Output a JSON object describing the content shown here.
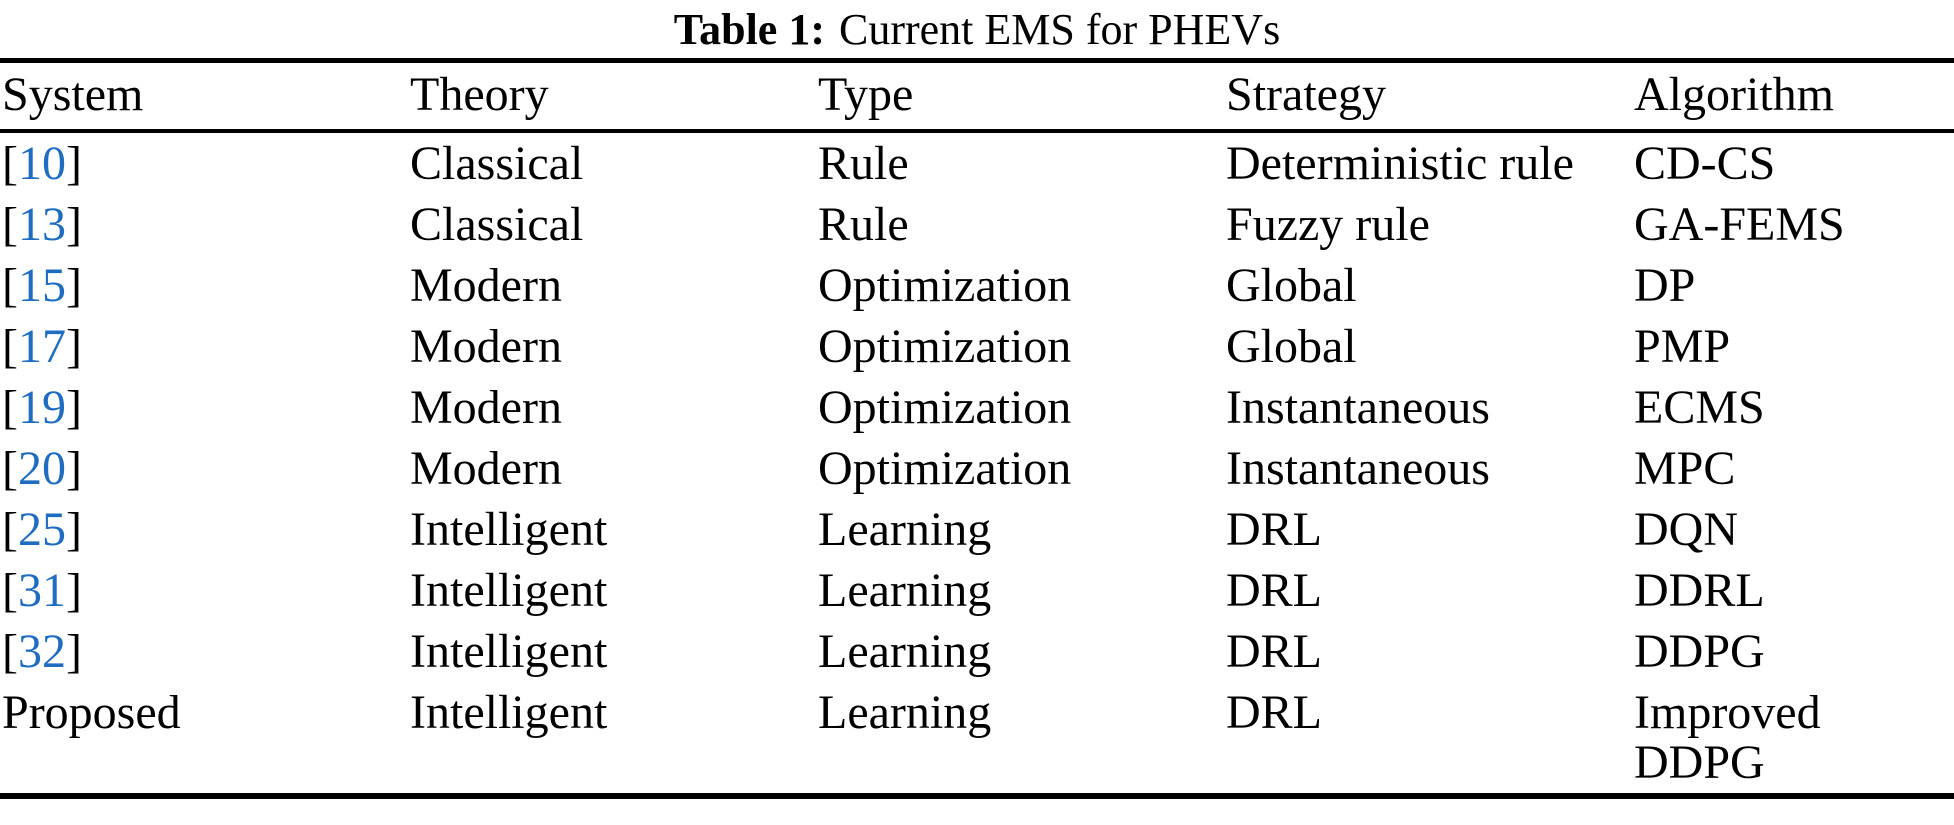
{
  "caption": {
    "label": "Table 1:",
    "text": "Current EMS for PHEVs"
  },
  "colors": {
    "citation_blue": "#1f6dc1",
    "text": "#000000",
    "rule": "#000000",
    "background": "#ffffff"
  },
  "table": {
    "citation_brackets": {
      "open": "[",
      "close": "]"
    },
    "columns": [
      "System",
      "Theory",
      "Type",
      "Strategy",
      "Algorithm"
    ],
    "rows": [
      {
        "system": "10",
        "system_is_citation": true,
        "theory": "Classical",
        "type": "Rule",
        "strategy": "Deterministic rule",
        "algorithm": "CD-CS"
      },
      {
        "system": "13",
        "system_is_citation": true,
        "theory": "Classical",
        "type": "Rule",
        "strategy": "Fuzzy rule",
        "algorithm": "GA-FEMS"
      },
      {
        "system": "15",
        "system_is_citation": true,
        "theory": "Modern",
        "type": "Optimization",
        "strategy": "Global",
        "algorithm": "DP"
      },
      {
        "system": "17",
        "system_is_citation": true,
        "theory": "Modern",
        "type": "Optimization",
        "strategy": "Global",
        "algorithm": "PMP"
      },
      {
        "system": "19",
        "system_is_citation": true,
        "theory": "Modern",
        "type": "Optimization",
        "strategy": "Instantaneous",
        "algorithm": "ECMS"
      },
      {
        "system": "20",
        "system_is_citation": true,
        "theory": "Modern",
        "type": "Optimization",
        "strategy": "Instantaneous",
        "algorithm": "MPC"
      },
      {
        "system": "25",
        "system_is_citation": true,
        "theory": "Intelligent",
        "type": "Learning",
        "strategy": "DRL",
        "algorithm": "DQN"
      },
      {
        "system": "31",
        "system_is_citation": true,
        "theory": "Intelligent",
        "type": "Learning",
        "strategy": "DRL",
        "algorithm": "DDRL"
      },
      {
        "system": "32",
        "system_is_citation": true,
        "theory": "Intelligent",
        "type": "Learning",
        "strategy": "DRL",
        "algorithm": "DDPG"
      },
      {
        "system": "Proposed",
        "system_is_citation": false,
        "theory": "Intelligent",
        "type": "Learning",
        "strategy": "DRL",
        "algorithm": "Improved DDPG"
      }
    ]
  }
}
